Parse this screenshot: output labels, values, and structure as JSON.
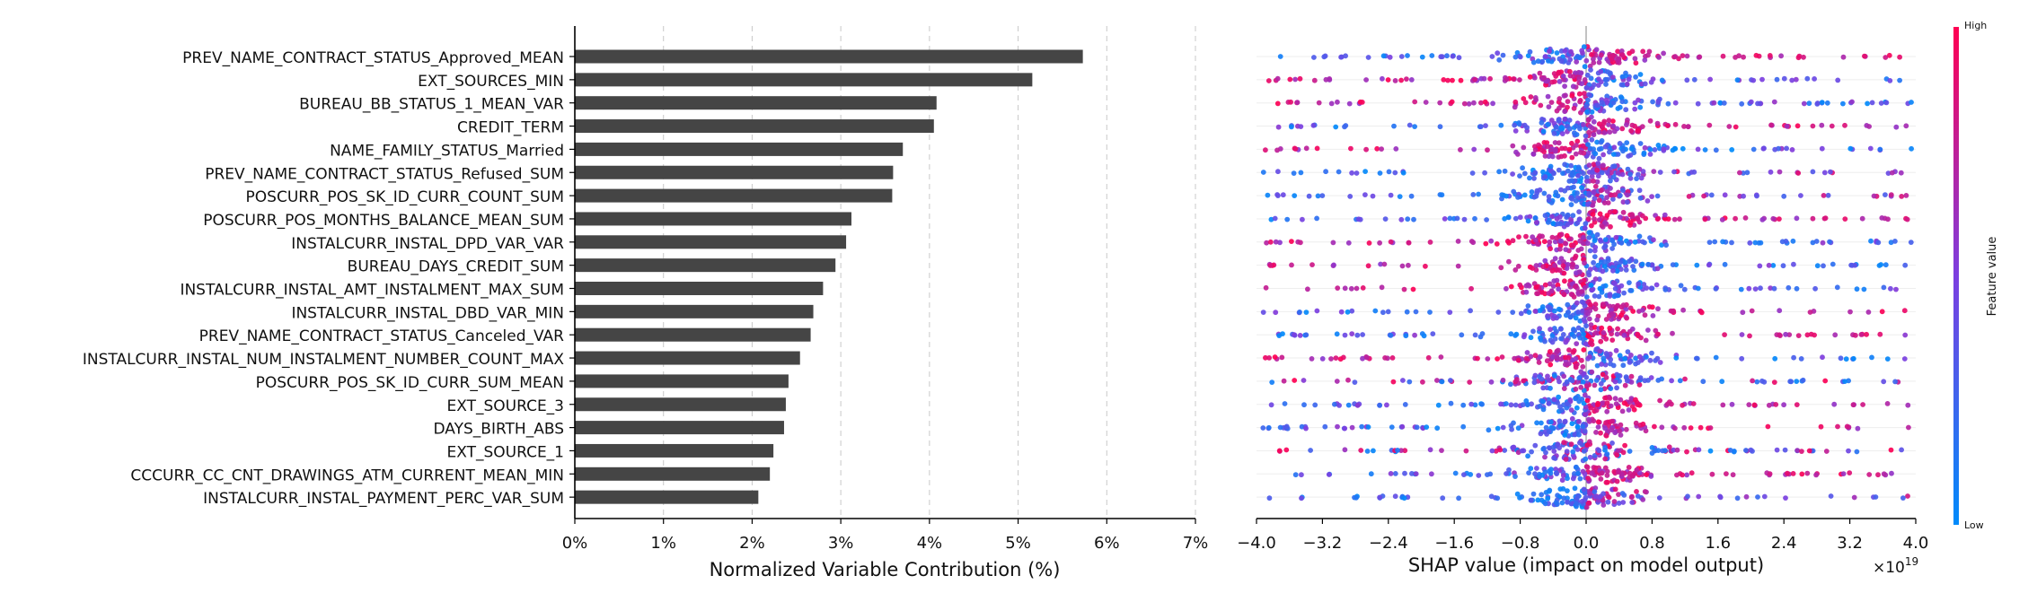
{
  "chart_data": [
    {
      "type": "bar",
      "orientation": "horizontal",
      "categories": [
        "PREV_NAME_CONTRACT_STATUS_Approved_MEAN",
        "EXT_SOURCES_MIN",
        "BUREAU_BB_STATUS_1_MEAN_VAR",
        "CREDIT_TERM",
        "NAME_FAMILY_STATUS_Married",
        "PREV_NAME_CONTRACT_STATUS_Refused_SUM",
        "POSCURR_POS_SK_ID_CURR_COUNT_SUM",
        "POSCURR_POS_MONTHS_BALANCE_MEAN_SUM",
        "INSTALCURR_INSTAL_DPD_VAR_VAR",
        "BUREAU_DAYS_CREDIT_SUM",
        "INSTALCURR_INSTAL_AMT_INSTALMENT_MAX_SUM",
        "INSTALCURR_INSTAL_DBD_VAR_MIN",
        "PREV_NAME_CONTRACT_STATUS_Canceled_VAR",
        "INSTALCURR_INSTAL_NUM_INSTALMENT_NUMBER_COUNT_MAX",
        "POSCURR_POS_SK_ID_CURR_SUM_MEAN",
        "EXT_SOURCE_3",
        "DAYS_BIRTH_ABS",
        "EXT_SOURCE_1",
        "CCCURR_CC_CNT_DRAWINGS_ATM_CURRENT_MEAN_MIN",
        "INSTALCURR_INSTAL_PAYMENT_PERC_VAR_SUM"
      ],
      "values": [
        5.73,
        5.16,
        4.08,
        4.05,
        3.7,
        3.59,
        3.58,
        3.12,
        3.06,
        2.94,
        2.8,
        2.69,
        2.66,
        2.54,
        2.41,
        2.38,
        2.36,
        2.24,
        2.2,
        2.07
      ],
      "xlabel": "Normalized Variable Contribution (%)",
      "xlim": [
        0,
        7
      ],
      "xticks": [
        "0%",
        "1%",
        "2%",
        "3%",
        "4%",
        "5%",
        "6%",
        "7%"
      ],
      "grid": "vertical dashed",
      "bar_color": "#454545"
    },
    {
      "type": "scatter",
      "subtype": "shap-beeswarm",
      "xlabel": "SHAP value (impact on model output)",
      "x_multiplier_label": "×10",
      "x_multiplier_exponent": "19",
      "xlim": [
        -4.0,
        4.0
      ],
      "xticks": [
        "−4.0",
        "−3.2",
        "−2.4",
        "−1.6",
        "−0.8",
        "0.0",
        "0.8",
        "1.6",
        "2.4",
        "3.2",
        "4.0"
      ],
      "rows": 20,
      "row_color_tendency": [
        "high-right",
        "high-left",
        "high-left",
        "high-right",
        "high-left",
        "low-left",
        "low-left",
        "high-right",
        "high-left",
        "high-left",
        "high-left",
        "high-right",
        "high-right",
        "high-left",
        "mixed",
        "high-right",
        "high-right",
        "mixed",
        "high-right",
        "low-left"
      ],
      "colorbar": {
        "label": "Feature value",
        "high_label": "High",
        "low_label": "Low",
        "high_color": "#ff0052",
        "low_color": "#008bfb"
      }
    }
  ]
}
